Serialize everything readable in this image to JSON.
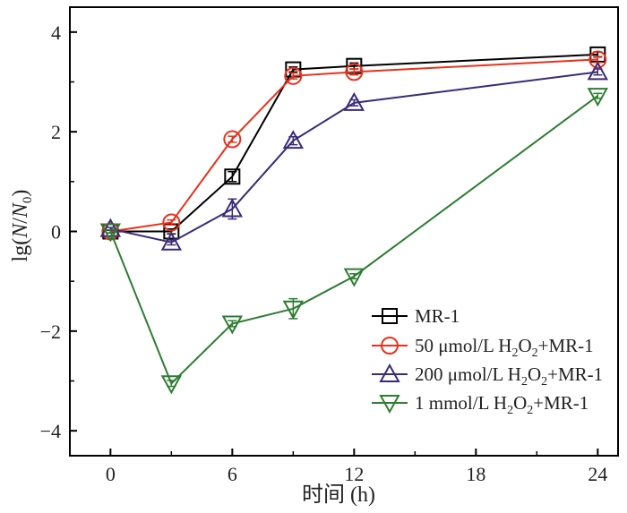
{
  "chart_data": {
    "type": "line",
    "xlabel": "时间 (h)",
    "ylabel": "lg(N/N0)",
    "ylabel_parts": {
      "prefix": "lg(",
      "n": "N",
      "slash": "/",
      "n0": "N",
      "sub0": "0",
      "suffix": ")"
    },
    "xlim": [
      -2,
      25
    ],
    "ylim": [
      -4.5,
      4.5
    ],
    "xticks": [
      0,
      6,
      12,
      18,
      24
    ],
    "yticks": [
      4,
      2,
      0,
      -2,
      -4
    ],
    "ytick_labels": [
      "4",
      "2",
      "0",
      "−2",
      "−4"
    ],
    "legend_position": "bottom-right",
    "series": [
      {
        "name": "MR-1",
        "color": "#000000",
        "marker": "square",
        "x": [
          0,
          3,
          6,
          9,
          12,
          24
        ],
        "y": [
          0.0,
          0.0,
          1.1,
          3.25,
          3.32,
          3.55
        ],
        "err": [
          0.03,
          0.05,
          0.1,
          0.05,
          0.06,
          0.05
        ]
      },
      {
        "name": "50 μmol/L H2O2+MR-1",
        "legend_parts": {
          "pre": "50 μmol/L H",
          "sub1": "2",
          "mid": "O",
          "sub2": "2",
          "post": "+MR-1"
        },
        "color": "#e8321e",
        "marker": "circle",
        "x": [
          0,
          3,
          6,
          9,
          12,
          24
        ],
        "y": [
          0.0,
          0.18,
          1.85,
          3.12,
          3.2,
          3.45
        ],
        "err": [
          0.03,
          0.05,
          0.06,
          0.06,
          0.06,
          0.06
        ]
      },
      {
        "name": "200 μmol/L H2O2+MR-1",
        "legend_parts": {
          "pre": "200 μmol/L H",
          "sub1": "2",
          "mid": "O",
          "sub2": "2",
          "post": "+MR-1"
        },
        "color": "#3a2a78",
        "marker": "triangle-up",
        "x": [
          0,
          3,
          6,
          9,
          12,
          24
        ],
        "y": [
          0.05,
          -0.22,
          0.45,
          1.82,
          2.58,
          3.2
        ],
        "err": [
          0.03,
          0.05,
          0.2,
          0.08,
          0.06,
          0.06
        ]
      },
      {
        "name": "1 mmol/L H2O2+MR-1",
        "legend_parts": {
          "pre": "1 mmol/L H",
          "sub1": "2",
          "mid": "O",
          "sub2": "2",
          "post": "+MR-1"
        },
        "color": "#2e7d32",
        "marker": "triangle-down",
        "x": [
          0,
          3,
          6,
          9,
          12,
          24
        ],
        "y": [
          0.0,
          -3.05,
          -1.85,
          -1.55,
          -0.9,
          2.72
        ],
        "err": [
          0.03,
          0.06,
          0.06,
          0.2,
          0.05,
          0.05
        ]
      }
    ]
  }
}
